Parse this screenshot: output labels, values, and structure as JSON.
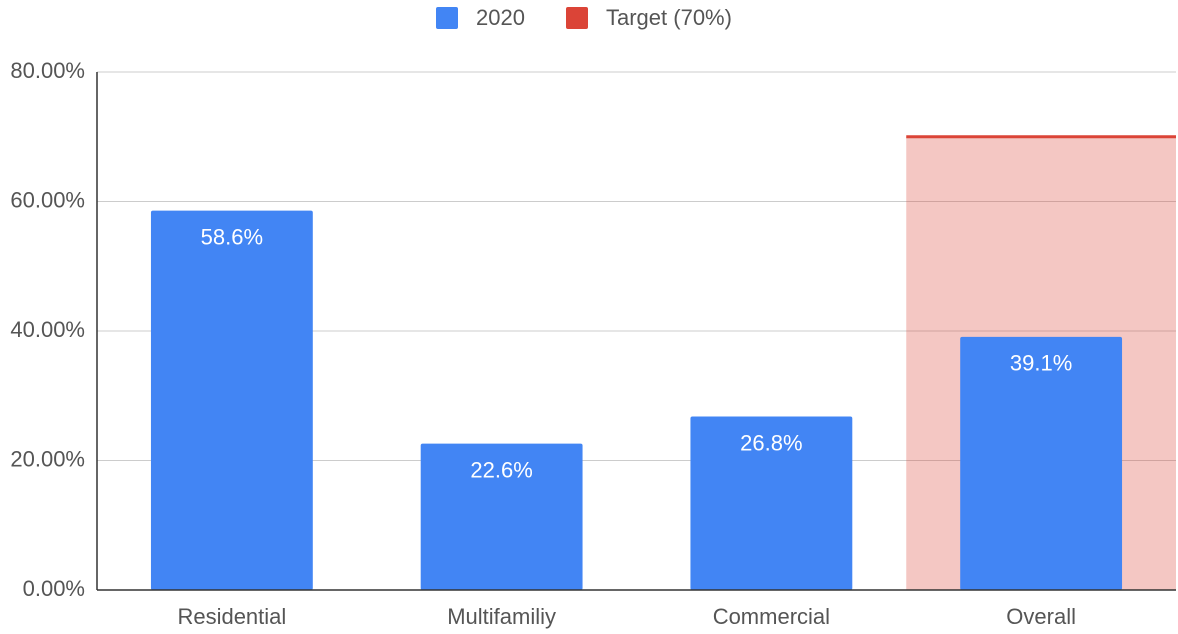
{
  "chart_data": {
    "type": "bar",
    "categories": [
      "Residential",
      "Multifamiliy",
      "Commercial",
      "Overall"
    ],
    "series": [
      {
        "name": "2020",
        "color": "#4285f4",
        "values": [
          58.6,
          22.6,
          26.8,
          39.1
        ],
        "value_labels": [
          "58.6%",
          "22.6%",
          "26.8%",
          "39.1%"
        ]
      },
      {
        "name": "Target (70%)",
        "color": "#db4437",
        "values": [
          null,
          null,
          null,
          70
        ]
      }
    ],
    "ylim": [
      0,
      80
    ],
    "yticks": [
      {
        "value": 0,
        "label": "0.00%"
      },
      {
        "value": 20,
        "label": "20.00%"
      },
      {
        "value": 40,
        "label": "40.00%"
      },
      {
        "value": 60,
        "label": "60.00%"
      },
      {
        "value": 80,
        "label": "80.00%"
      }
    ],
    "grid": true,
    "legend": "top"
  }
}
